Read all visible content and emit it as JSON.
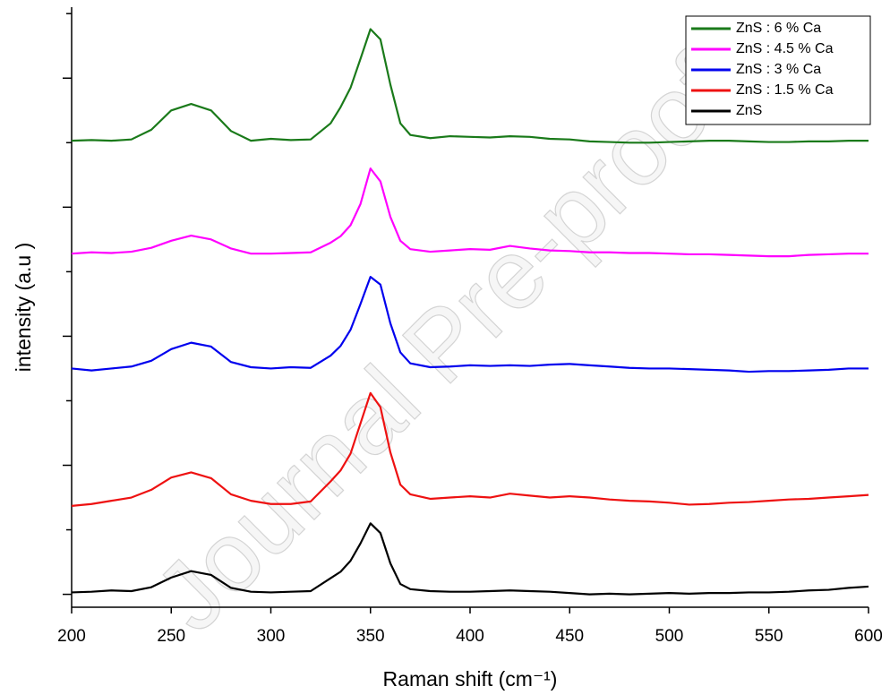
{
  "chart_data": {
    "type": "line",
    "xlabel": "Raman shift (cm⁻¹)",
    "ylabel": "intensity (a.u )",
    "watermark": "Journal Pre-proof",
    "x": [
      200,
      210,
      220,
      230,
      240,
      250,
      260,
      270,
      280,
      290,
      300,
      310,
      320,
      330,
      335,
      340,
      345,
      350,
      355,
      360,
      365,
      370,
      380,
      390,
      400,
      410,
      420,
      430,
      440,
      450,
      460,
      470,
      480,
      490,
      500,
      510,
      520,
      530,
      540,
      550,
      560,
      570,
      580,
      590,
      600
    ],
    "series": [
      {
        "name": "ZnS : 6 % Ca",
        "color": "#1a7a1a",
        "values": [
          7.03,
          7.04,
          7.03,
          7.05,
          7.2,
          7.5,
          7.6,
          7.5,
          7.18,
          7.03,
          7.06,
          7.04,
          7.05,
          7.3,
          7.55,
          7.85,
          8.3,
          8.76,
          8.6,
          7.9,
          7.3,
          7.12,
          7.07,
          7.1,
          7.09,
          7.08,
          7.1,
          7.09,
          7.06,
          7.05,
          7.02,
          7.01,
          7.0,
          7.0,
          7.01,
          7.02,
          7.03,
          7.03,
          7.02,
          7.01,
          7.01,
          7.02,
          7.02,
          7.03,
          7.03
        ]
      },
      {
        "name": "ZnS : 4.5 % Ca",
        "color": "#ff00ff",
        "values": [
          5.28,
          5.3,
          5.29,
          5.31,
          5.37,
          5.48,
          5.56,
          5.5,
          5.36,
          5.28,
          5.28,
          5.29,
          5.3,
          5.45,
          5.55,
          5.72,
          6.05,
          6.6,
          6.4,
          5.85,
          5.48,
          5.35,
          5.31,
          5.33,
          5.35,
          5.34,
          5.4,
          5.36,
          5.33,
          5.32,
          5.3,
          5.3,
          5.29,
          5.29,
          5.28,
          5.27,
          5.27,
          5.26,
          5.25,
          5.24,
          5.24,
          5.26,
          5.27,
          5.28,
          5.28
        ]
      },
      {
        "name": "ZnS : 3 % Ca",
        "color": "#0000ee",
        "values": [
          3.5,
          3.47,
          3.5,
          3.53,
          3.62,
          3.8,
          3.9,
          3.84,
          3.6,
          3.52,
          3.5,
          3.52,
          3.51,
          3.7,
          3.85,
          4.1,
          4.5,
          4.92,
          4.8,
          4.2,
          3.75,
          3.58,
          3.52,
          3.53,
          3.55,
          3.54,
          3.55,
          3.54,
          3.56,
          3.57,
          3.55,
          3.53,
          3.51,
          3.5,
          3.5,
          3.49,
          3.48,
          3.47,
          3.45,
          3.46,
          3.46,
          3.47,
          3.48,
          3.5,
          3.5
        ]
      },
      {
        "name": "ZnS : 1.5 % Ca",
        "color": "#ee1111",
        "values": [
          1.37,
          1.4,
          1.45,
          1.5,
          1.62,
          1.81,
          1.89,
          1.8,
          1.55,
          1.45,
          1.4,
          1.4,
          1.44,
          1.75,
          1.92,
          2.18,
          2.65,
          3.12,
          2.9,
          2.2,
          1.7,
          1.55,
          1.48,
          1.5,
          1.52,
          1.5,
          1.56,
          1.53,
          1.5,
          1.52,
          1.5,
          1.47,
          1.45,
          1.44,
          1.42,
          1.39,
          1.4,
          1.42,
          1.43,
          1.45,
          1.47,
          1.48,
          1.5,
          1.52,
          1.54
        ]
      },
      {
        "name": "ZnS",
        "color": "#000000",
        "values": [
          0.03,
          0.04,
          0.06,
          0.05,
          0.11,
          0.26,
          0.36,
          0.3,
          0.1,
          0.04,
          0.03,
          0.04,
          0.05,
          0.25,
          0.35,
          0.52,
          0.79,
          1.1,
          0.95,
          0.48,
          0.16,
          0.08,
          0.05,
          0.04,
          0.04,
          0.05,
          0.06,
          0.05,
          0.04,
          0.02,
          0.0,
          0.01,
          0.0,
          0.01,
          0.02,
          0.01,
          0.02,
          0.02,
          0.03,
          0.03,
          0.04,
          0.06,
          0.07,
          0.1,
          0.12
        ]
      }
    ],
    "xlim": [
      200,
      600
    ],
    "xticks": [
      200,
      250,
      300,
      350,
      400,
      450,
      500,
      550,
      600
    ],
    "ylim": [
      -0.2,
      9.1
    ],
    "yticks": [
      0,
      1,
      2,
      3,
      4,
      5,
      6,
      7,
      8,
      9
    ],
    "grid": false,
    "legend": "upper right"
  }
}
